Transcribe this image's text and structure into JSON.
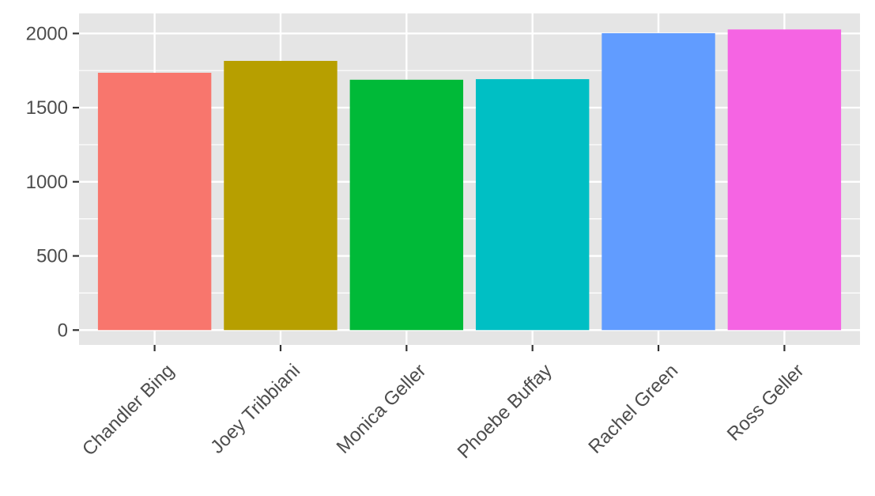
{
  "chart_data": {
    "type": "bar",
    "title": "",
    "xlabel": "",
    "ylabel": "",
    "categories": [
      "Chandler Bing",
      "Joey Tribbiani",
      "Monica Geller",
      "Phoebe Buffay",
      "Rachel Green",
      "Ross Geller"
    ],
    "values": [
      1735,
      1815,
      1688,
      1692,
      2002,
      2027
    ],
    "colors": [
      "#F8766D",
      "#B79F00",
      "#00BA38",
      "#00BFC4",
      "#619CFF",
      "#F564E3"
    ],
    "ylim": [
      -100,
      2135
    ],
    "yticks": [
      0,
      500,
      1000,
      1500,
      2000
    ],
    "ytick_labels": [
      "0",
      "500",
      "1000",
      "1500",
      "2000"
    ],
    "grid": true,
    "legend": "none",
    "panel_background": "#e5e5e5",
    "grid_color": "#ffffff"
  }
}
